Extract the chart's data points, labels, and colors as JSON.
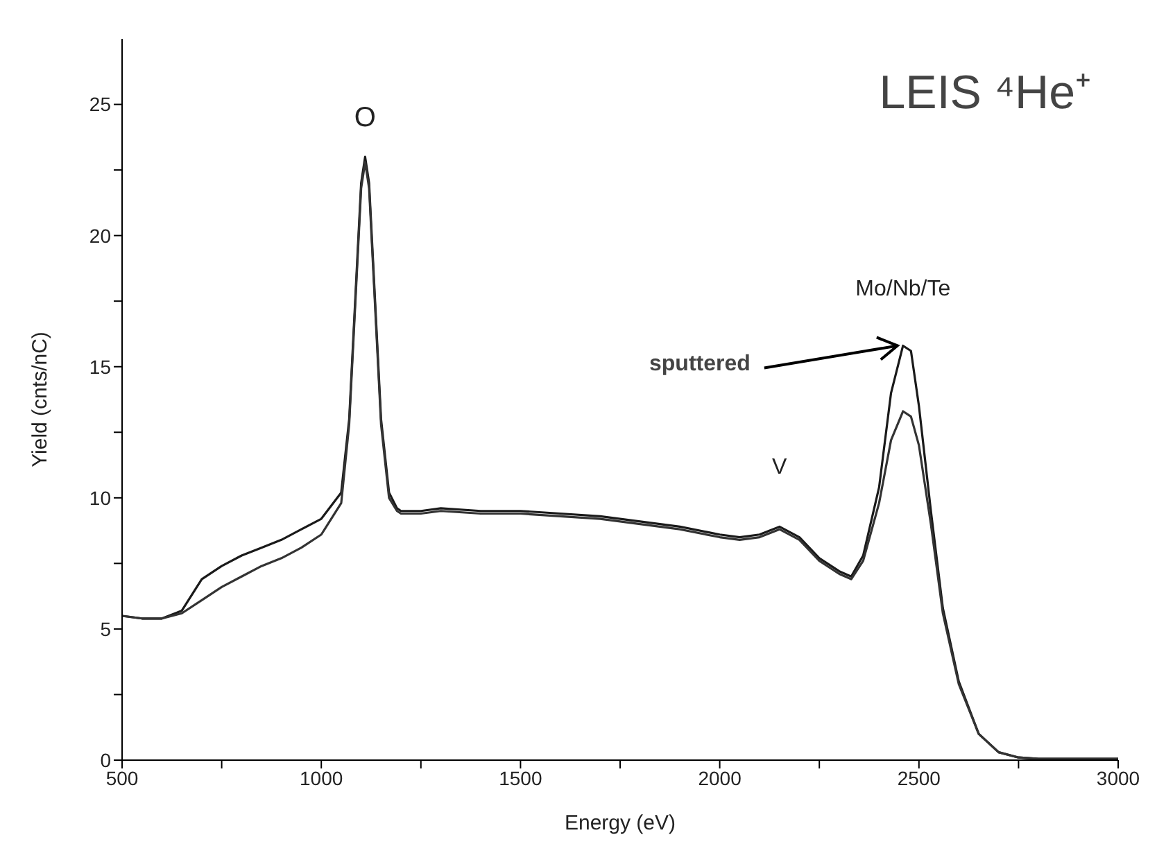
{
  "chart_data": {
    "type": "line",
    "title": "LEIS ⁴He⁺",
    "xlabel": "Energy (eV)",
    "ylabel": "Yield (cnts/nC)",
    "xlim": [
      500,
      3000
    ],
    "ylim": [
      0,
      27.5
    ],
    "xticks": [
      500,
      {
        "value": 750,
        "label": null
      },
      1000,
      {
        "value": 1250,
        "label": null
      },
      1500,
      {
        "value": 1750,
        "label": null
      },
      2000,
      {
        "value": 2250,
        "label": null
      },
      2500,
      {
        "value": 2750,
        "label": null
      },
      3000
    ],
    "yticks": [
      0,
      {
        "value": 2.5,
        "label": null
      },
      5,
      {
        "value": 7.5,
        "label": null
      },
      10,
      {
        "value": 12.5,
        "label": null
      },
      15,
      {
        "value": 17.5,
        "label": null
      },
      20,
      {
        "value": 22.5,
        "label": null
      },
      25
    ],
    "marker": "none",
    "line_style": "solid",
    "x": [
      500,
      550,
      600,
      650,
      700,
      750,
      800,
      850,
      900,
      950,
      1000,
      1050,
      1070,
      1090,
      1100,
      1110,
      1120,
      1130,
      1150,
      1170,
      1190,
      1200,
      1250,
      1300,
      1400,
      1500,
      1600,
      1700,
      1800,
      1900,
      2000,
      2050,
      2100,
      2150,
      2200,
      2250,
      2300,
      2330,
      2360,
      2400,
      2430,
      2460,
      2480,
      2500,
      2530,
      2560,
      2600,
      2650,
      2700,
      2750,
      2800,
      2900,
      3000
    ],
    "series": [
      {
        "color": "#1a1a1a",
        "values": [
          5.5,
          5.4,
          5.4,
          5.7,
          6.9,
          7.4,
          7.8,
          8.1,
          8.4,
          8.8,
          9.2,
          10.2,
          13,
          19,
          22,
          23,
          22,
          19,
          13,
          10.2,
          9.6,
          9.5,
          9.5,
          9.6,
          9.5,
          9.5,
          9.4,
          9.3,
          9.1,
          8.9,
          8.6,
          8.5,
          8.6,
          8.9,
          8.5,
          7.7,
          7.2,
          7,
          7.8,
          10.4,
          14,
          15.8,
          15.6,
          13.5,
          9.5,
          5.8,
          3,
          1,
          0.3,
          0.1,
          0.05,
          0.05,
          0.05
        ]
      },
      {
        "color": "#333333",
        "values": [
          5.5,
          5.4,
          5.4,
          5.6,
          6.1,
          6.6,
          7,
          7.4,
          7.7,
          8.1,
          8.6,
          9.8,
          12.8,
          18.8,
          21.8,
          22.8,
          21.8,
          18.8,
          12.8,
          10,
          9.5,
          9.4,
          9.4,
          9.5,
          9.4,
          9.4,
          9.3,
          9.2,
          9,
          8.8,
          8.5,
          8.4,
          8.5,
          8.8,
          8.4,
          7.6,
          7.1,
          6.9,
          7.6,
          9.8,
          12.2,
          13.3,
          13.1,
          12,
          9,
          5.6,
          2.9,
          1,
          0.3,
          0.1,
          0.05,
          0.05,
          0.05
        ]
      }
    ],
    "annotations": [
      {
        "text": "O",
        "x": 1110,
        "y": 23
      },
      {
        "text": "V",
        "x": 2150,
        "y": 8.9
      },
      {
        "text": "Mo/Nb/Te",
        "x": 2460,
        "y": 15.8
      },
      {
        "text": "sputtered",
        "x": 2460,
        "y": 15.8
      }
    ]
  }
}
